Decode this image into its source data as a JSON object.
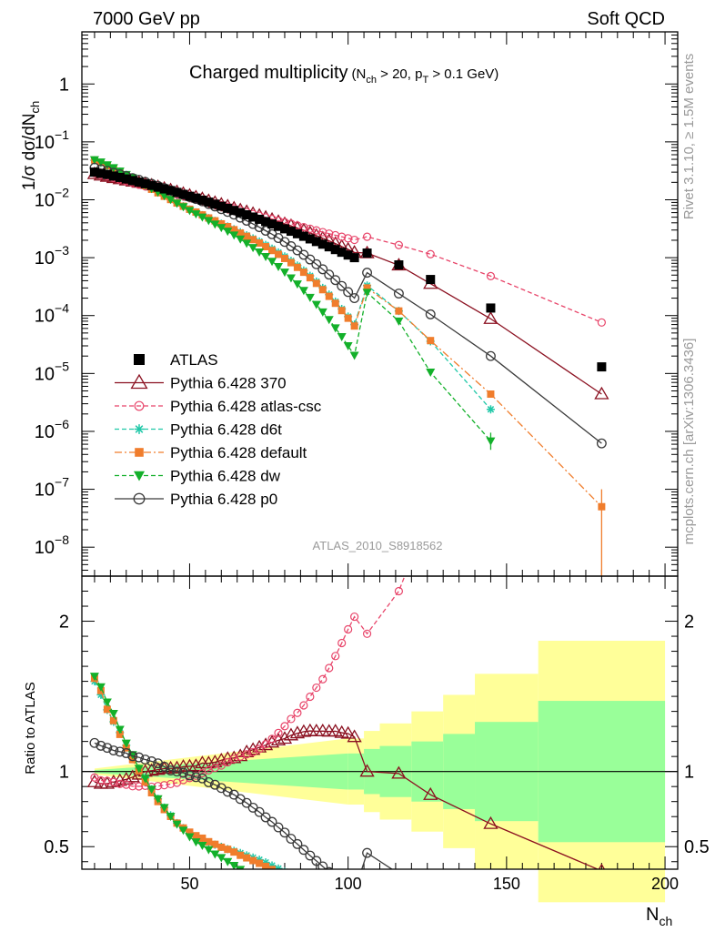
{
  "header": {
    "left": "7000 GeV pp",
    "right": "Soft QCD"
  },
  "side": {
    "rivet": "Rivet 3.1.10, ≥ 1.5M events",
    "mcplots": "mcplots.cern.ch [arXiv:1306.3436]"
  },
  "chart_data": {
    "type": "line",
    "title": "Charged multiplicity",
    "title_cut_a": "(N",
    "title_cut_sub_a": "ch",
    "title_cut_b": " > 20, p",
    "title_cut_sub_b": "T",
    "title_cut_c": " > 0.1 GeV)",
    "analysis": "ATLAS_2010_S8918562",
    "ylabel_main": "1/σ dσ/dN",
    "ylabel_main_sub": "ch",
    "ylabel_ratio": "Ratio to ATLAS",
    "xlabel": "N",
    "xlabel_sub": "ch",
    "xlim": [
      16,
      204
    ],
    "ylim_main_log10": [
      -8.5,
      0.9
    ],
    "ylim_ratio": [
      0.35,
      2.3
    ],
    "xticks": [
      50,
      100,
      150,
      200
    ],
    "xtick_labels": [
      "50",
      "100",
      "150",
      "200"
    ],
    "main_yticks_exp": [
      0,
      -1,
      -2,
      -3,
      -4,
      -5,
      -6,
      -7,
      -8
    ],
    "main_ytick_labels": [
      {
        "base": "1",
        "exp": ""
      },
      {
        "base": "10",
        "exp": "−1"
      },
      {
        "base": "10",
        "exp": "−2"
      },
      {
        "base": "10",
        "exp": "−3"
      },
      {
        "base": "10",
        "exp": "−4"
      },
      {
        "base": "10",
        "exp": "−5"
      },
      {
        "base": "10",
        "exp": "−6"
      },
      {
        "base": "10",
        "exp": "−7"
      },
      {
        "base": "10",
        "exp": "−8"
      }
    ],
    "ratio_yticks": [
      0.5,
      1,
      2
    ],
    "ratio_ytick_labels": [
      "0.5",
      "1",
      "2"
    ],
    "legend_position": "lower-left",
    "band_edges": [
      100,
      105,
      110,
      120,
      130,
      140,
      160,
      200
    ],
    "band_inner": [
      0.12,
      0.15,
      0.17,
      0.2,
      0.25,
      0.33,
      0.47
    ],
    "band_outer": [
      0.22,
      0.27,
      0.32,
      0.4,
      0.51,
      0.65,
      0.87
    ],
    "series": [
      {
        "key": "atlas",
        "name": "ATLAS",
        "marker": "filled-square",
        "color": "#000000",
        "dash": "none",
        "x": [
          20,
          22,
          24,
          26,
          28,
          30,
          32,
          34,
          36,
          38,
          40,
          42,
          44,
          46,
          48,
          50,
          52,
          54,
          56,
          58,
          60,
          62,
          64,
          66,
          68,
          70,
          72,
          74,
          76,
          78,
          80,
          82,
          84,
          86,
          88,
          90,
          92,
          94,
          96,
          98,
          100,
          102,
          106,
          116,
          126,
          145,
          180
        ],
        "y": [
          0.03,
          0.0286,
          0.0273,
          0.0257,
          0.0243,
          0.0229,
          0.0215,
          0.0202,
          0.0189,
          0.0177,
          0.0165,
          0.0154,
          0.0144,
          0.0134,
          0.0124,
          0.0115,
          0.0107,
          0.00985,
          0.0091,
          0.0084,
          0.00774,
          0.00713,
          0.00655,
          0.00601,
          0.0055,
          0.00503,
          0.0046,
          0.0042,
          0.00382,
          0.00347,
          0.00315,
          0.00286,
          0.00259,
          0.00234,
          0.00211,
          0.0019,
          0.00171,
          0.00154,
          0.00138,
          0.00124,
          0.00111,
          0.001,
          0.0012,
          0.00075,
          0.00042,
          0.000135,
          1.3e-05
        ]
      },
      {
        "key": "p370",
        "name": "Pythia 6.428 370",
        "marker": "open-triangle",
        "color": "#8b1020",
        "dash": "none",
        "x": [
          20,
          22,
          24,
          26,
          28,
          30,
          32,
          34,
          36,
          38,
          40,
          42,
          44,
          46,
          48,
          50,
          52,
          54,
          56,
          58,
          60,
          62,
          64,
          66,
          68,
          70,
          72,
          74,
          76,
          78,
          80,
          82,
          84,
          86,
          88,
          90,
          92,
          94,
          96,
          98,
          100,
          102,
          106,
          116,
          126,
          145,
          180
        ],
        "y": [
          0.0279,
          0.0263,
          0.0251,
          0.0239,
          0.0228,
          0.0217,
          0.0207,
          0.0198,
          0.0189,
          0.0178,
          0.0167,
          0.0157,
          0.0147,
          0.0137,
          0.0128,
          0.0119,
          0.0111,
          0.0104,
          0.0096,
          0.00892,
          0.00832,
          0.00774,
          0.00714,
          0.00663,
          0.00621,
          0.00576,
          0.00534,
          0.00494,
          0.00456,
          0.00419,
          0.00384,
          0.00355,
          0.00325,
          0.00296,
          0.00268,
          0.00241,
          0.00217,
          0.00195,
          0.00175,
          0.00156,
          0.00139,
          0.00123,
          0.0012,
          0.00074,
          0.000355,
          8.8e-05,
          4.4e-06
        ]
      },
      {
        "key": "csc",
        "name": "Pythia 6.428 atlas-csc",
        "marker": "open-circle-small",
        "color": "#e8456a",
        "dash": "dashed",
        "x": [
          20,
          22,
          24,
          26,
          28,
          30,
          32,
          34,
          36,
          38,
          40,
          42,
          44,
          46,
          48,
          50,
          52,
          54,
          56,
          58,
          60,
          62,
          64,
          66,
          68,
          70,
          72,
          74,
          76,
          78,
          80,
          82,
          84,
          86,
          88,
          90,
          92,
          94,
          96,
          98,
          100,
          102,
          106,
          116,
          126,
          145,
          180
        ],
        "y": [
          0.0288,
          0.0269,
          0.0256,
          0.0239,
          0.0223,
          0.0209,
          0.0194,
          0.0182,
          0.0171,
          0.0159,
          0.0149,
          0.014,
          0.0132,
          0.0124,
          0.0117,
          0.011,
          0.0104,
          0.00974,
          0.00917,
          0.00861,
          0.00805,
          0.00757,
          0.0071,
          0.00661,
          0.00613,
          0.00568,
          0.00529,
          0.00496,
          0.00465,
          0.00436,
          0.0041,
          0.00386,
          0.0036,
          0.00337,
          0.00316,
          0.00296,
          0.00276,
          0.0026,
          0.00244,
          0.0023,
          0.00216,
          0.00203,
          0.0023,
          0.00165,
          0.00115,
          0.00048,
          7.6e-05
        ]
      },
      {
        "key": "d6t",
        "name": "Pythia 6.428 d6t",
        "marker": "asterisk",
        "color": "#20c8a8",
        "dash": "dashed",
        "x": [
          20,
          22,
          24,
          26,
          28,
          30,
          32,
          34,
          36,
          38,
          40,
          42,
          44,
          46,
          48,
          50,
          52,
          54,
          56,
          58,
          60,
          62,
          64,
          66,
          68,
          70,
          72,
          74,
          76,
          78,
          80,
          82,
          84,
          86,
          88,
          90,
          92,
          94,
          96,
          98,
          100,
          102,
          106,
          116,
          126,
          145
        ],
        "y": [
          0.048,
          0.0432,
          0.0385,
          0.0342,
          0.0306,
          0.0269,
          0.0235,
          0.0206,
          0.0181,
          0.0156,
          0.0135,
          0.0117,
          0.0102,
          0.0088,
          0.00773,
          0.00679,
          0.00606,
          0.00542,
          0.00481,
          0.00431,
          0.00386,
          0.00345,
          0.00309,
          0.00275,
          0.00243,
          0.00215,
          0.0019,
          0.00166,
          0.00143,
          0.00123,
          0.00105,
          0.00088,
          0.00073,
          0.0006,
          0.000486,
          0.000386,
          0.0003,
          0.00023,
          0.000174,
          0.00013,
          9.6e-05,
          7e-05,
          0.00033,
          0.00012,
          3.6e-05,
          2.4e-06
        ]
      },
      {
        "key": "def",
        "name": "Pythia 6.428 default",
        "marker": "filled-square-small",
        "color": "#f07d2c",
        "dash": "dashdot",
        "x": [
          20,
          22,
          24,
          26,
          28,
          30,
          32,
          34,
          36,
          38,
          40,
          42,
          44,
          46,
          48,
          50,
          52,
          54,
          56,
          58,
          60,
          62,
          64,
          66,
          68,
          70,
          72,
          74,
          76,
          78,
          80,
          82,
          84,
          86,
          88,
          90,
          92,
          94,
          96,
          98,
          100,
          102,
          106,
          116,
          126,
          145,
          180
        ],
        "y": [
          0.0486,
          0.044,
          0.0386,
          0.0344,
          0.0303,
          0.0265,
          0.0232,
          0.0203,
          0.0176,
          0.0152,
          0.0132,
          0.0115,
          0.0101,
          0.0088,
          0.00774,
          0.00686,
          0.00613,
          0.00548,
          0.00485,
          0.00433,
          0.00384,
          0.00344,
          0.00304,
          0.00266,
          0.00234,
          0.00205,
          0.00179,
          0.00155,
          0.00133,
          0.00114,
          0.00097,
          0.00082,
          0.00068,
          0.00056,
          0.00045,
          0.00036,
          0.00028,
          0.000215,
          0.000163,
          0.000122,
          9e-05,
          6.6e-05,
          0.0003,
          0.00012,
          3.7e-05,
          4.4e-06,
          5e-08
        ]
      },
      {
        "key": "dw",
        "name": "Pythia 6.428 dw",
        "marker": "filled-triangle-down",
        "color": "#13b02a",
        "dash": "dashed",
        "x": [
          20,
          22,
          24,
          26,
          28,
          30,
          32,
          34,
          36,
          38,
          40,
          42,
          44,
          46,
          48,
          50,
          52,
          54,
          56,
          58,
          60,
          62,
          64,
          66,
          68,
          70,
          72,
          74,
          76,
          78,
          80,
          82,
          84,
          86,
          88,
          90,
          92,
          94,
          96,
          98,
          100,
          102,
          106,
          116,
          126,
          145
        ],
        "y": [
          0.049,
          0.0447,
          0.0399,
          0.0356,
          0.0311,
          0.0272,
          0.0239,
          0.0206,
          0.018,
          0.0156,
          0.0135,
          0.0117,
          0.0101,
          0.0087,
          0.00755,
          0.0065,
          0.00568,
          0.005,
          0.00436,
          0.00378,
          0.0033,
          0.00285,
          0.00245,
          0.00209,
          0.00177,
          0.00149,
          0.00125,
          0.00104,
          0.00086,
          0.0007,
          0.00056,
          0.000445,
          0.00035,
          0.00027,
          0.000205,
          0.000155,
          0.000115,
          8.5e-05,
          6.1e-05,
          4.3e-05,
          3e-05,
          2.05e-05,
          0.00025,
          8e-05,
          1.05e-05,
          6.8e-07
        ]
      },
      {
        "key": "p0",
        "name": "Pythia 6.428 p0",
        "marker": "open-circle",
        "color": "#3a3a3a",
        "dash": "none",
        "x": [
          20,
          22,
          24,
          26,
          28,
          30,
          32,
          34,
          36,
          38,
          40,
          42,
          44,
          46,
          48,
          50,
          52,
          54,
          56,
          58,
          60,
          62,
          64,
          66,
          68,
          70,
          72,
          74,
          76,
          78,
          80,
          82,
          84,
          86,
          88,
          90,
          92,
          94,
          96,
          98,
          100,
          102,
          106,
          116,
          126,
          145,
          180
        ],
        "y": [
          0.0357,
          0.0335,
          0.0316,
          0.0293,
          0.0275,
          0.0257,
          0.0237,
          0.0221,
          0.0204,
          0.0189,
          0.0174,
          0.0159,
          0.0145,
          0.0134,
          0.0123,
          0.0112,
          0.0103,
          0.0094,
          0.00845,
          0.00766,
          0.00689,
          0.00617,
          0.00554,
          0.00491,
          0.00435,
          0.00382,
          0.00336,
          0.00292,
          0.00254,
          0.00218,
          0.00187,
          0.00158,
          0.00134,
          0.00112,
          0.00093,
          0.00077,
          0.00063,
          0.00051,
          0.00041,
          0.000325,
          0.000255,
          0.0002,
          0.00055,
          0.00024,
          0.000105,
          2e-05,
          6.2e-07
        ]
      }
    ]
  }
}
